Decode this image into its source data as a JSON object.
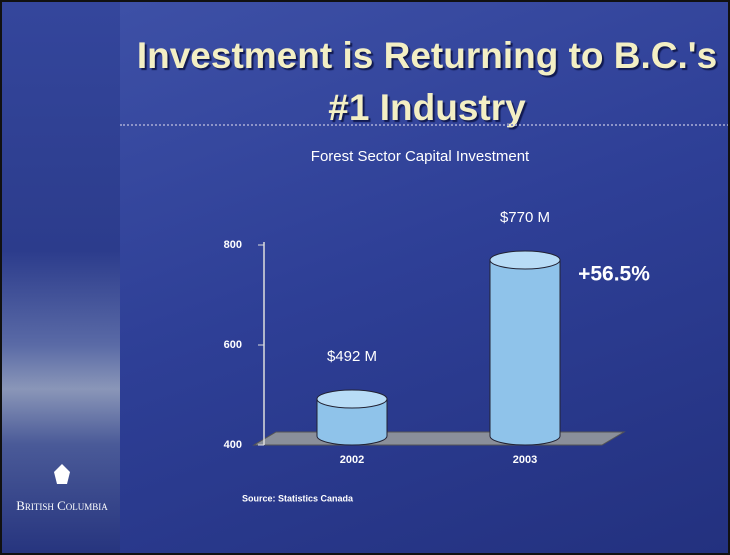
{
  "chart_data": {
    "type": "bar",
    "title": "Investment is Returning to B.C.'s #1 Industry",
    "subtitle": "Forest Sector Capital Investment",
    "categories": [
      "2002",
      "2003"
    ],
    "values": [
      492,
      770
    ],
    "value_labels": [
      "$492 M",
      "$770 M"
    ],
    "color": "#8fc3ea",
    "ylim": [
      400,
      800
    ],
    "yticks": [
      400,
      600,
      800
    ],
    "annotation": "+56.5%",
    "source": "Source: Statistics Canada",
    "logo": "British Columbia"
  }
}
